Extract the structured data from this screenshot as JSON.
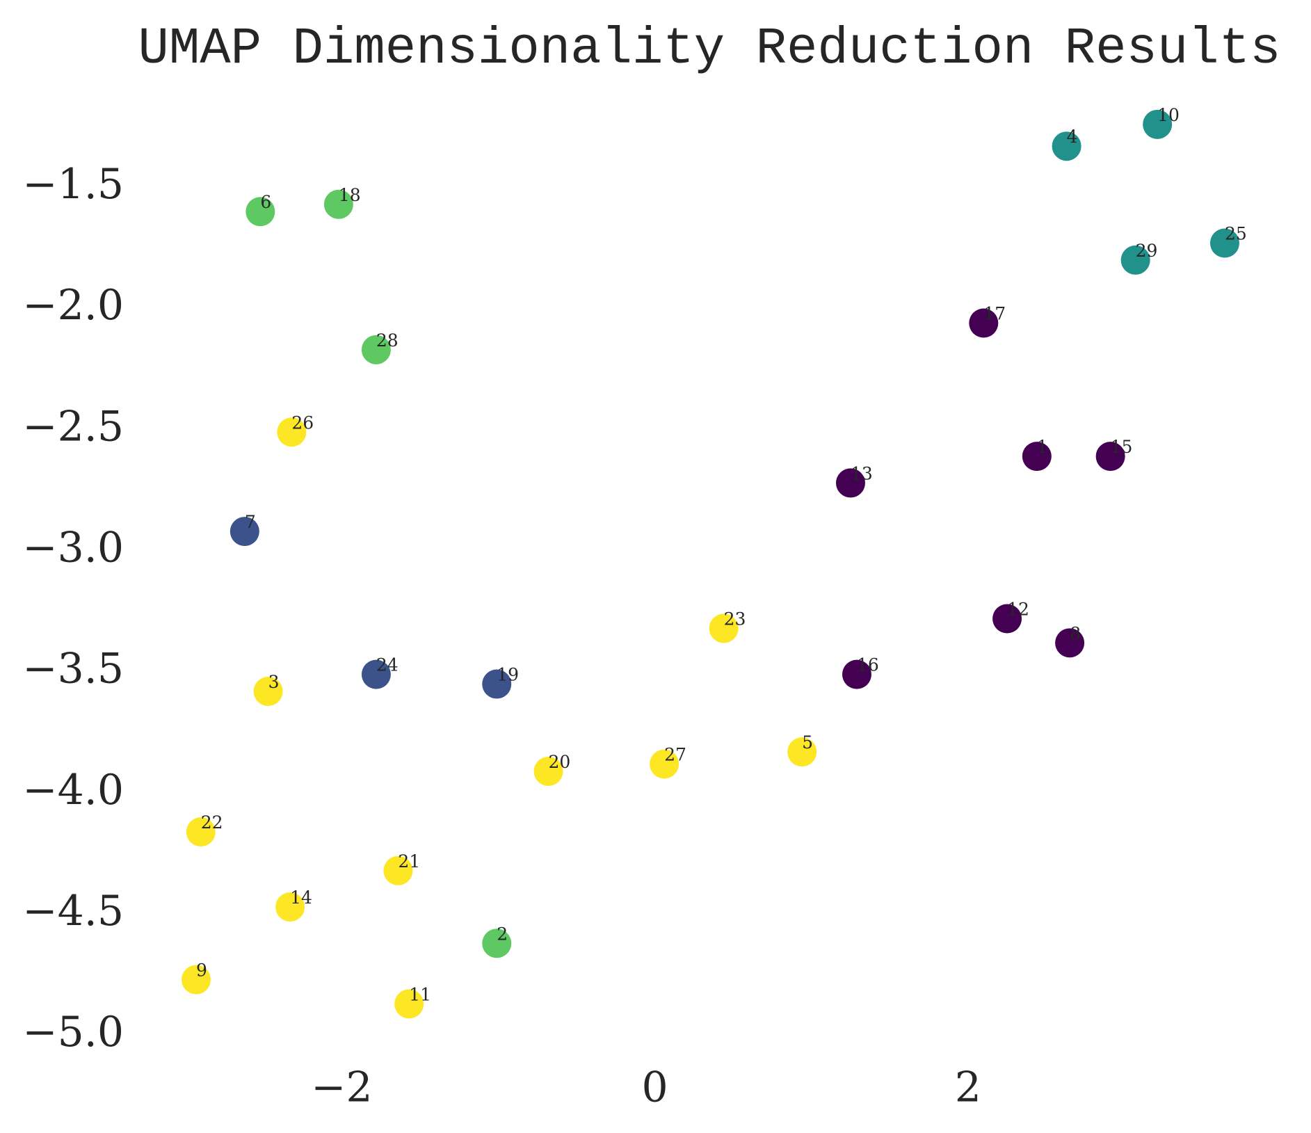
{
  "chart_data": {
    "type": "scatter",
    "title": "UMAP Dimensionality Reduction Results",
    "x": [
      2.44,
      -1.01,
      -2.47,
      2.63,
      0.94,
      -2.52,
      -2.62,
      2.65,
      -2.93,
      3.21,
      -1.57,
      2.25,
      1.25,
      -2.33,
      2.91,
      1.29,
      2.1,
      -2.02,
      -1.01,
      -0.68,
      -1.64,
      -2.9,
      0.44,
      -1.78,
      3.64,
      -2.32,
      0.06,
      -1.78,
      3.07
    ],
    "y": [
      -2.61,
      -4.62,
      -3.58,
      -1.33,
      -3.83,
      -1.6,
      -2.92,
      -3.38,
      -4.77,
      -1.24,
      -4.87,
      -3.28,
      -2.72,
      -4.47,
      -2.61,
      -3.51,
      -2.06,
      -1.57,
      -3.55,
      -3.91,
      -4.32,
      -4.16,
      -3.32,
      -3.51,
      -1.73,
      -2.51,
      -3.88,
      -2.17,
      -1.8
    ],
    "labels": [
      "1",
      "2",
      "3",
      "4",
      "5",
      "6",
      "7",
      "8",
      "9",
      "10",
      "11",
      "12",
      "13",
      "14",
      "15",
      "16",
      "17",
      "18",
      "19",
      "20",
      "21",
      "22",
      "23",
      "24",
      "25",
      "26",
      "27",
      "28",
      "29"
    ],
    "colors": [
      "#440154",
      "#5ec962",
      "#fde725",
      "#21918c",
      "#fde725",
      "#5ec962",
      "#3b528b",
      "#440154",
      "#fde725",
      "#21918c",
      "#fde725",
      "#440154",
      "#440154",
      "#fde725",
      "#440154",
      "#440154",
      "#440154",
      "#5ec962",
      "#3b528b",
      "#fde725",
      "#fde725",
      "#fde725",
      "#fde725",
      "#3b528b",
      "#21918c",
      "#fde725",
      "#fde725",
      "#5ec962",
      "#21918c"
    ],
    "xlim": [
      -3.33,
      4.04
    ],
    "ylim": [
      -5.11,
      -1.14
    ],
    "xticks": [
      {
        "value": -2,
        "label": "−2"
      },
      0,
      2
    ],
    "yticks": [
      {
        "value": -5.0,
        "label": "−5.0"
      },
      {
        "value": -4.5,
        "label": "−4.5"
      },
      {
        "value": -4.0,
        "label": "−4.0"
      },
      {
        "value": -3.5,
        "label": "−3.5"
      },
      {
        "value": -3.0,
        "label": "−3.0"
      },
      {
        "value": -2.5,
        "label": "−2.5"
      },
      {
        "value": -2.0,
        "label": "−2.0"
      },
      {
        "value": -1.5,
        "label": "−1.5"
      }
    ],
    "grid": false
  }
}
